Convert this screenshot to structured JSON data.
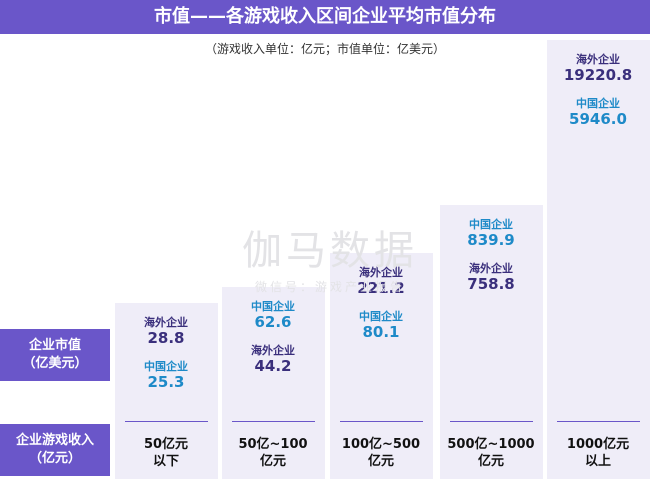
{
  "title": "市值——各游戏收入区间企业平均市值分布",
  "subtitle": "（游戏收入单位：亿元；市值单位：亿美元）",
  "row_labels": {
    "market_value": [
      "企业市值",
      "（亿美元）"
    ],
    "revenue": [
      "企业游戏收入",
      "（亿元）"
    ]
  },
  "watermark": {
    "main": "伽马数据",
    "sub": "微信号：游戏产业报告"
  },
  "colors": {
    "header": "#6a56c9",
    "overseas": "#3a2f7c",
    "domestic": "#1e8ac8",
    "column_bg": "#efedf8"
  },
  "chart_data": {
    "type": "table",
    "title": "市值——各游戏收入区间企业平均市值分布",
    "subtitle": "（游戏收入单位：亿元；市值单位：亿美元）",
    "categories": [
      [
        "50亿元",
        "以下"
      ],
      [
        "50亿~100",
        "亿元"
      ],
      [
        "100亿~500",
        "亿元"
      ],
      [
        "500亿~1000",
        "亿元"
      ],
      [
        "1000亿元",
        "以上"
      ]
    ],
    "series": [
      {
        "name": "海外企业",
        "values": [
          28.8,
          44.2,
          221.2,
          758.8,
          19220.8
        ],
        "labels": [
          "28.8",
          "44.2",
          "221.2",
          "758.8",
          "19220.8"
        ]
      },
      {
        "name": "中国企业",
        "values": [
          25.3,
          62.6,
          80.1,
          839.9,
          5946.0
        ],
        "labels": [
          "25.3",
          "62.6",
          "80.1",
          "839.9",
          "5946.0"
        ]
      }
    ],
    "display_order": [
      [
        "海外企业",
        "中国企业"
      ],
      [
        "中国企业",
        "海外企业"
      ],
      [
        "海外企业",
        "中国企业"
      ],
      [
        "中国企业",
        "海外企业"
      ],
      [
        "海外企业",
        "中国企业"
      ]
    ]
  }
}
